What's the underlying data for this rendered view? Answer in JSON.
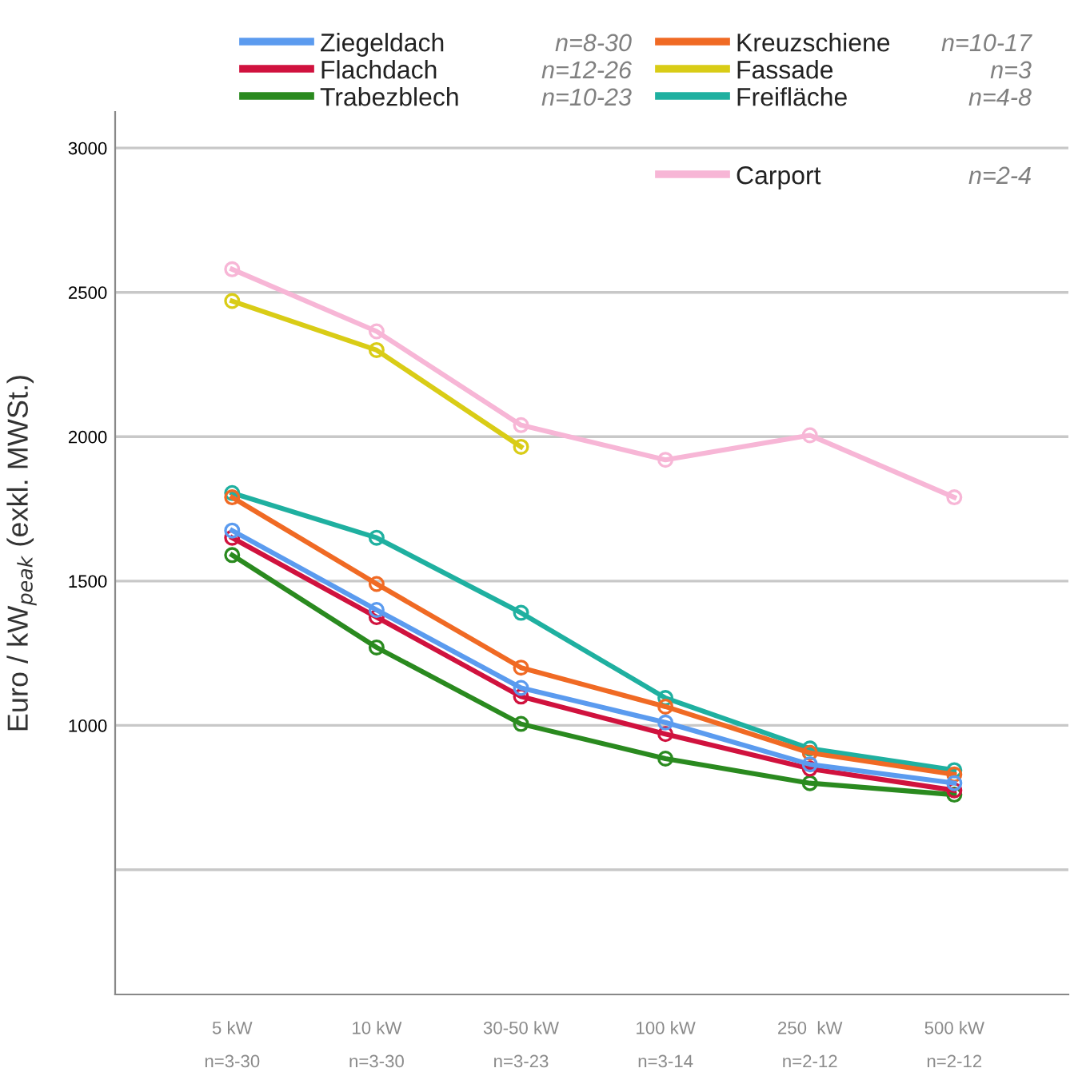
{
  "chart_data": {
    "type": "line",
    "ylabel": "Euro / kW$_{peak}$ (exkl. MWSt.)",
    "categories": [
      "5 kW\nn=3-30",
      "10 kW\nn=3-30",
      "30-50 kW\nn=3-23",
      "100 kW\nn=3-14",
      "250  kW\nn=2-12",
      "500 kW\nn=2-12"
    ],
    "series": [
      {
        "name": "Ziegeldach",
        "color": "#5b9bef",
        "values": [
          1675,
          1400,
          1130,
          1010,
          865,
          800
        ]
      },
      {
        "name": "Flachdach",
        "color": "#d0123e",
        "values": [
          1650,
          1375,
          1100,
          970,
          850,
          775
        ]
      },
      {
        "name": "Trabezblech",
        "color": "#2a8a1f",
        "values": [
          1590,
          1270,
          1005,
          885,
          800,
          760
        ]
      },
      {
        "name": "Kreuzschiene",
        "color": "#f06a24",
        "values": [
          1790,
          1490,
          1200,
          1065,
          905,
          830
        ]
      },
      {
        "name": "Fassade",
        "color": "#d9cc16",
        "values": [
          2470,
          2300,
          1965,
          null,
          null,
          null
        ]
      },
      {
        "name": "Freifläche",
        "color": "#1fb0a0",
        "values": [
          1805,
          1650,
          1390,
          1095,
          920,
          845
        ]
      },
      {
        "name": "Carport",
        "color": "#f7b6d6",
        "values": [
          2580,
          2365,
          2040,
          1920,
          2005,
          1790
        ]
      }
    ],
    "annotations": [
      "n=8-30",
      "n=12-26",
      "n=10-23",
      "n=10-17",
      "n=3",
      "n=4-8",
      "n=2-4"
    ],
    "ylim": [
      68,
      3125
    ],
    "yticks": [
      {
        "value": 500,
        "label": null
      },
      1000,
      1500,
      2000,
      2500,
      3000
    ],
    "grid": "y",
    "legend": "top",
    "marker": "circle",
    "line_style": "solid"
  }
}
